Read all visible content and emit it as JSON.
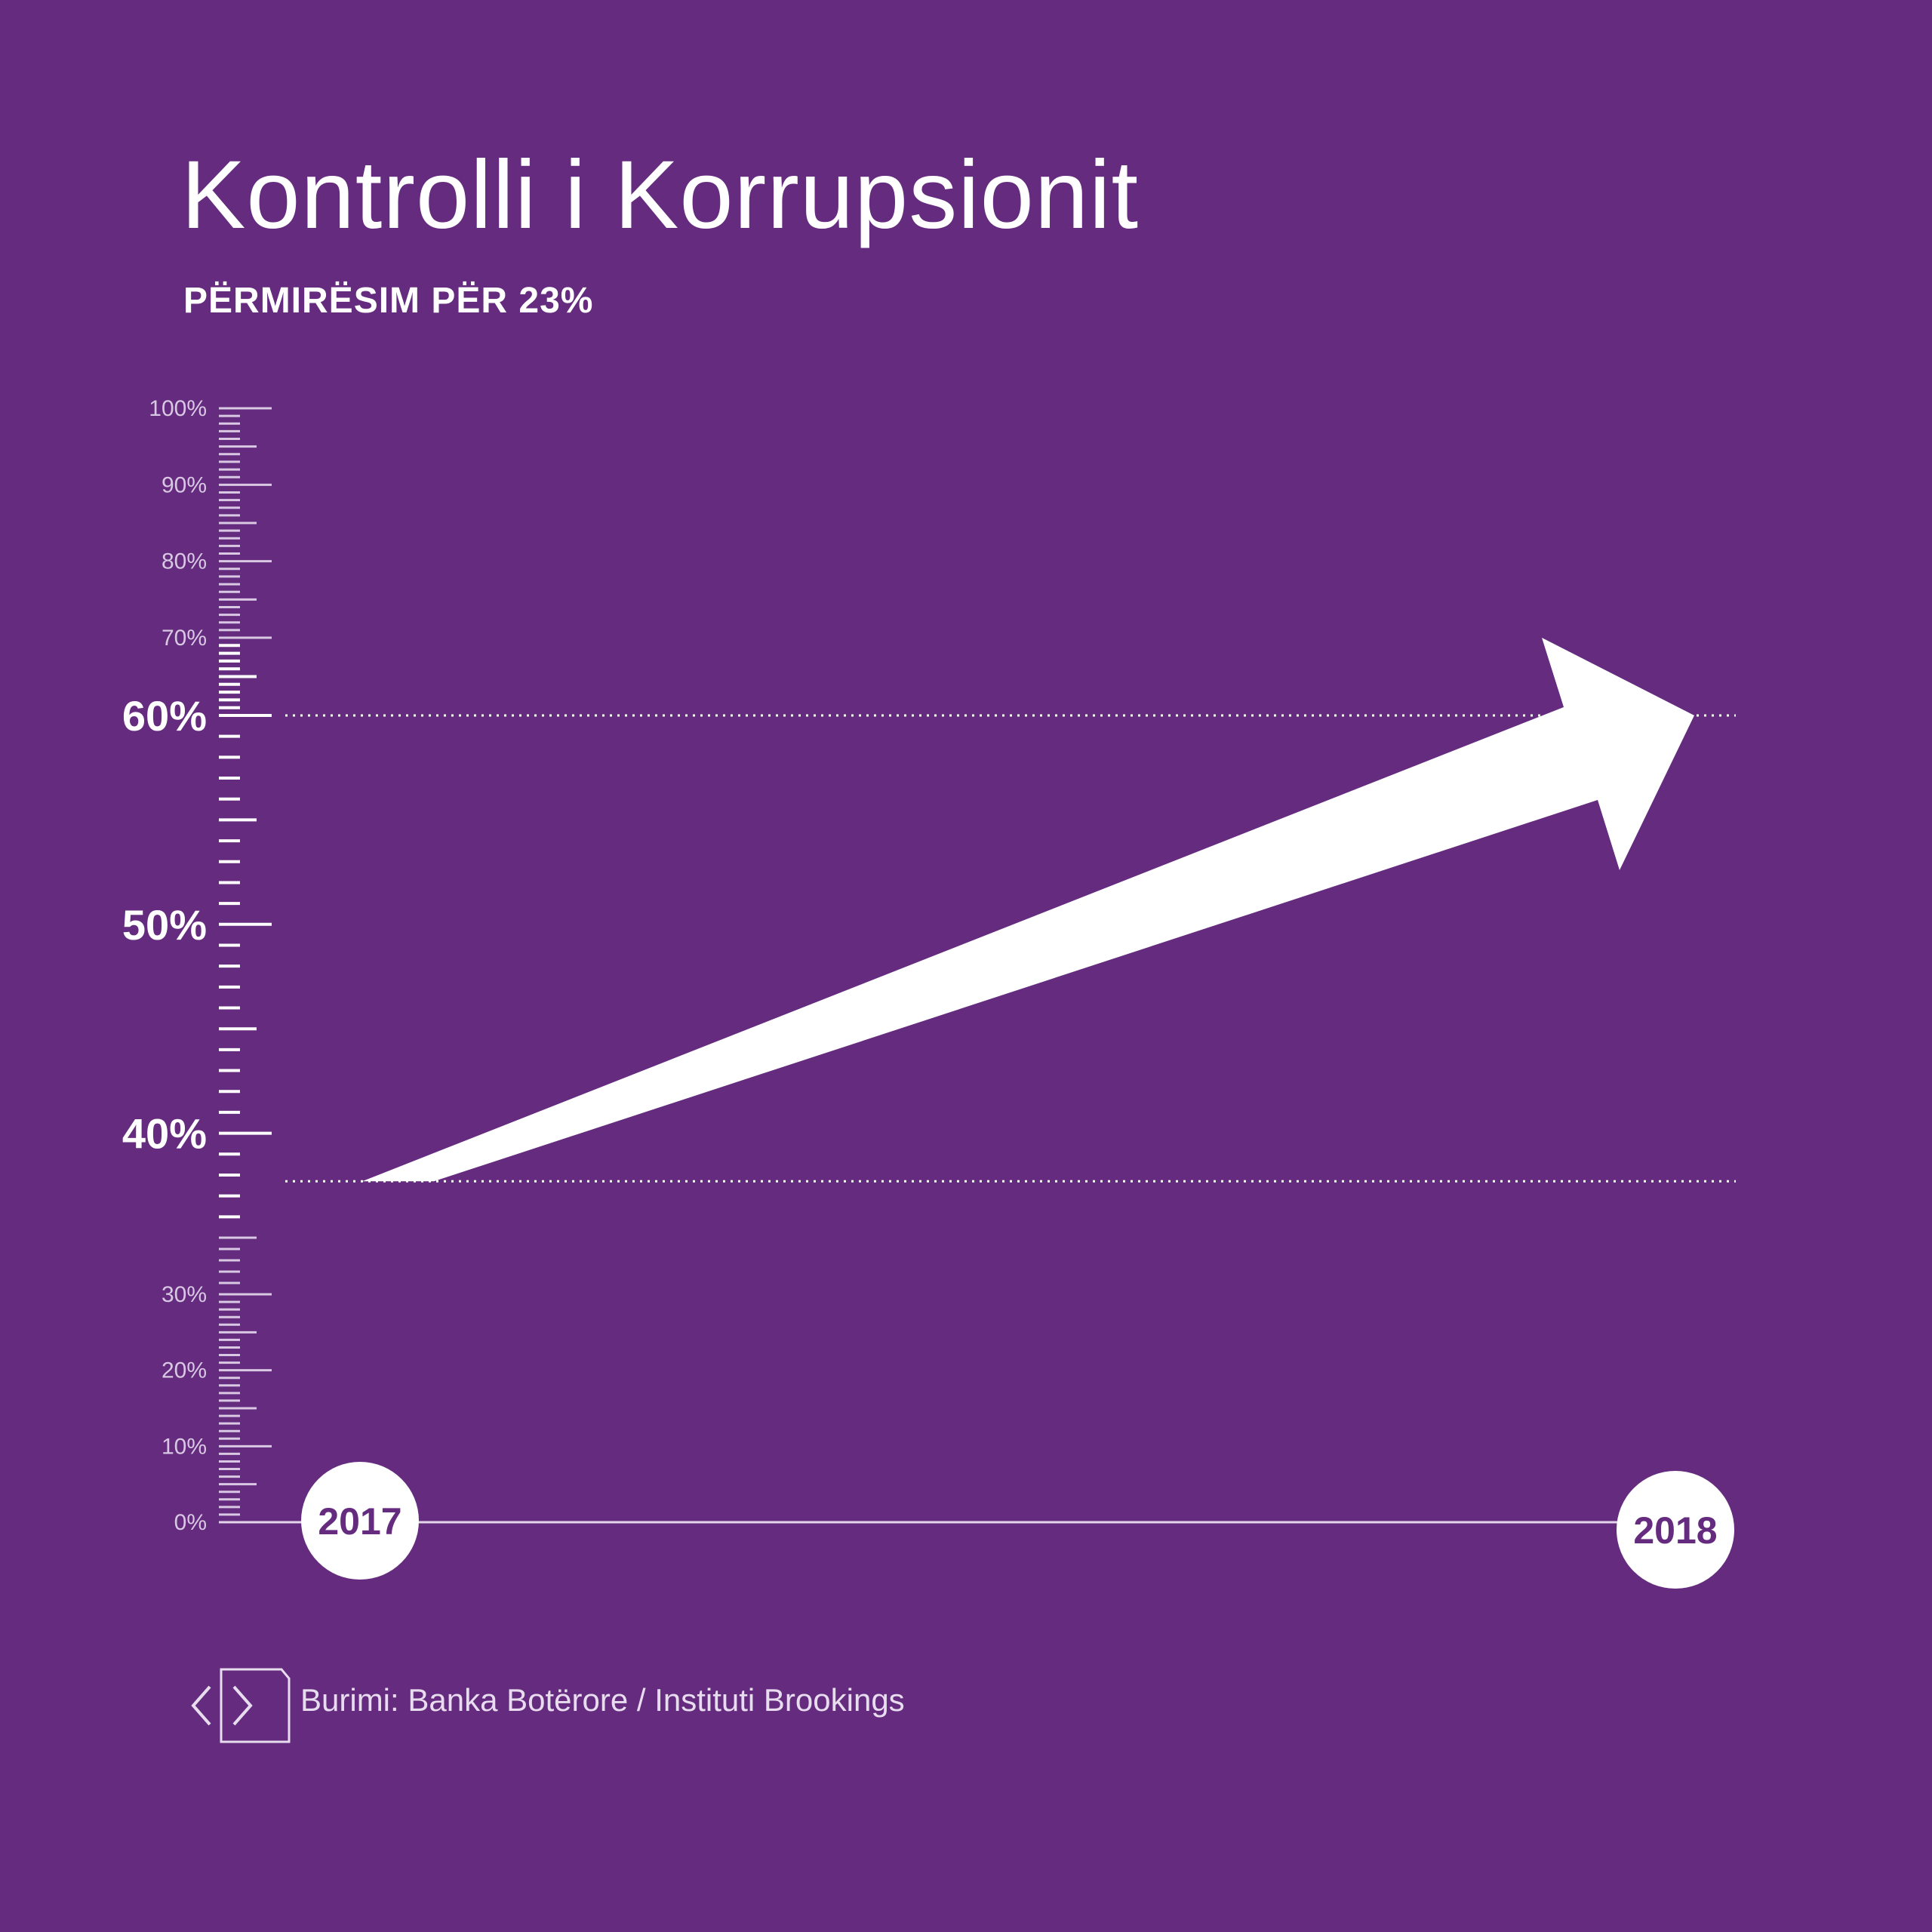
{
  "title": "Kontrolli i Korrupsionit",
  "subtitle": "PËRMIRËSIM PËR 23%",
  "source": "Burimi: Banka Botërore / Instituti Brookings",
  "icons": {
    "source": "code-document-icon"
  },
  "colors": {
    "background": "#652b7e",
    "foreground": "#ffffff",
    "year_text": "#652b7e"
  },
  "chart_data": {
    "type": "line",
    "title": "Kontrolli i Korrupsionit",
    "subtitle": "PËRMIRËSIM PËR 23%",
    "x": [
      "2017",
      "2018"
    ],
    "values": [
      37.7,
      60
    ],
    "ylim": [
      0,
      100
    ],
    "y_ticks_minor": [
      "0%",
      "10%",
      "20%",
      "30%",
      "70%",
      "80%",
      "90%",
      "100%"
    ],
    "y_ticks_major": [
      "40%",
      "50%",
      "60%"
    ],
    "reference_lines": [
      37.7,
      60
    ],
    "mark": "arrow",
    "grid": false
  }
}
